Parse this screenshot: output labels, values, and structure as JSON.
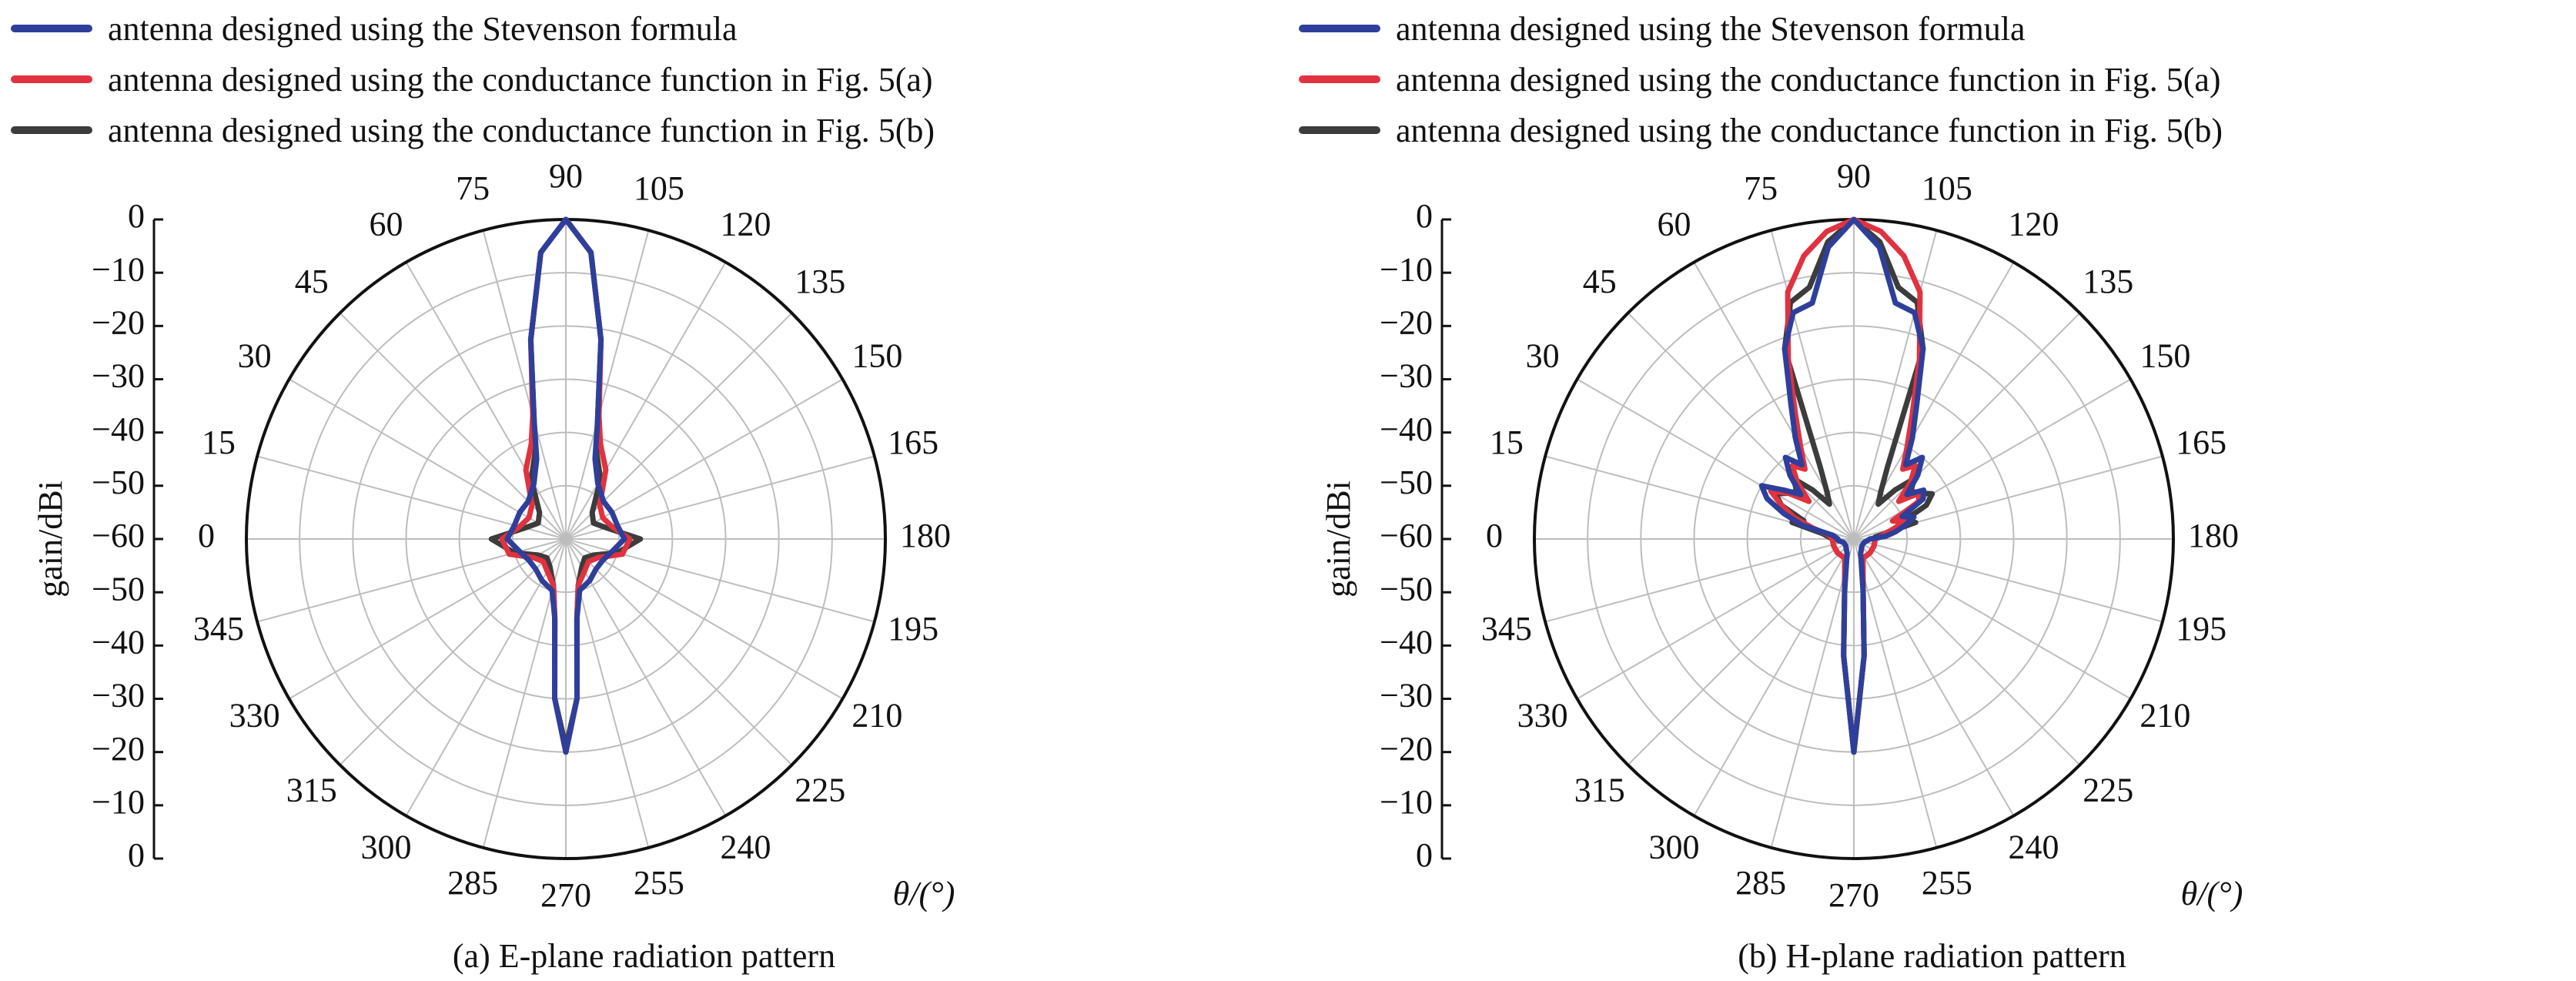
{
  "chart_data": [
    {
      "type": "polar-line",
      "panel": "a",
      "caption": "(a) E-plane radiation pattern",
      "ylabel": "gain/dBi",
      "angle_unit_label": "θ/(°)",
      "radial_range": [
        -60,
        0
      ],
      "radial_ticks": [
        0,
        -10,
        -20,
        -30,
        -40,
        -50,
        -60,
        -50,
        -40,
        -30,
        -20,
        -10,
        0
      ],
      "angle_ticks": [
        0,
        15,
        30,
        45,
        60,
        75,
        90,
        105,
        120,
        135,
        150,
        165,
        180,
        195,
        210,
        225,
        240,
        255,
        270,
        285,
        300,
        315,
        330,
        345
      ],
      "grid": true,
      "legend_position": "top-left",
      "series": [
        {
          "name": "antenna designed using the Stevenson formula",
          "color": "#2e3f9b",
          "points": [
            [
              0,
              -49
            ],
            [
              15,
              -50
            ],
            [
              30,
              -50
            ],
            [
              45,
              -50
            ],
            [
              60,
              -48
            ],
            [
              70,
              -44
            ],
            [
              75,
              -37
            ],
            [
              80,
              -22
            ],
            [
              85,
              -6
            ],
            [
              90,
              0
            ],
            [
              95,
              -6
            ],
            [
              100,
              -22
            ],
            [
              105,
              -37
            ],
            [
              110,
              -44
            ],
            [
              120,
              -48
            ],
            [
              135,
              -50
            ],
            [
              150,
              -50
            ],
            [
              165,
              -50
            ],
            [
              180,
              -49
            ],
            [
              195,
              -51
            ],
            [
              210,
              -52
            ],
            [
              225,
              -52
            ],
            [
              240,
              -51
            ],
            [
              255,
              -50
            ],
            [
              262,
              -45
            ],
            [
              266,
              -30
            ],
            [
              270,
              -20
            ],
            [
              274,
              -30
            ],
            [
              278,
              -45
            ],
            [
              285,
              -50
            ],
            [
              300,
              -51
            ],
            [
              315,
              -52
            ],
            [
              330,
              -52
            ],
            [
              345,
              -51
            ]
          ]
        },
        {
          "name": "antenna designed using the conductance function in Fig. 5(a)",
          "color": "#e1323f",
          "points": [
            [
              0,
              -48
            ],
            [
              15,
              -51
            ],
            [
              30,
              -52
            ],
            [
              45,
              -51
            ],
            [
              60,
              -45
            ],
            [
              70,
              -41
            ],
            [
              75,
              -36
            ],
            [
              80,
              -22
            ],
            [
              85,
              -6
            ],
            [
              90,
              0
            ],
            [
              95,
              -6
            ],
            [
              100,
              -22
            ],
            [
              105,
              -36
            ],
            [
              110,
              -41
            ],
            [
              120,
              -45
            ],
            [
              135,
              -51
            ],
            [
              150,
              -52
            ],
            [
              165,
              -51
            ],
            [
              180,
              -48
            ],
            [
              195,
              -49
            ],
            [
              210,
              -53
            ],
            [
              225,
              -54
            ],
            [
              240,
              -53
            ],
            [
              255,
              -51
            ],
            [
              262,
              -45
            ],
            [
              266,
              -30
            ],
            [
              270,
              -20
            ],
            [
              274,
              -30
            ],
            [
              278,
              -45
            ],
            [
              285,
              -51
            ],
            [
              300,
              -53
            ],
            [
              315,
              -54
            ],
            [
              330,
              -53
            ],
            [
              345,
              -49
            ]
          ]
        },
        {
          "name": "antenna designed using the conductance function in Fig. 5(b)",
          "color": "#3c3c3c",
          "points": [
            [
              0,
              -46
            ],
            [
              15,
              -52
            ],
            [
              30,
              -54
            ],
            [
              45,
              -53
            ],
            [
              60,
              -47
            ],
            [
              70,
              -43
            ],
            [
              75,
              -37
            ],
            [
              80,
              -22
            ],
            [
              85,
              -6
            ],
            [
              90,
              0
            ],
            [
              95,
              -6
            ],
            [
              100,
              -22
            ],
            [
              105,
              -37
            ],
            [
              110,
              -43
            ],
            [
              120,
              -47
            ],
            [
              135,
              -53
            ],
            [
              150,
              -54
            ],
            [
              165,
              -52
            ],
            [
              180,
              -46
            ],
            [
              195,
              -50
            ],
            [
              210,
              -54
            ],
            [
              225,
              -55
            ],
            [
              240,
              -54
            ],
            [
              255,
              -51
            ],
            [
              262,
              -45
            ],
            [
              266,
              -30
            ],
            [
              270,
              -21
            ],
            [
              274,
              -30
            ],
            [
              278,
              -45
            ],
            [
              285,
              -51
            ],
            [
              300,
              -54
            ],
            [
              315,
              -55
            ],
            [
              330,
              -54
            ],
            [
              345,
              -50
            ]
          ]
        }
      ]
    },
    {
      "type": "polar-line",
      "panel": "b",
      "caption": "(b) H-plane radiation pattern",
      "ylabel": "gain/dBi",
      "angle_unit_label": "θ/(°)",
      "radial_range": [
        -60,
        0
      ],
      "radial_ticks": [
        0,
        -10,
        -20,
        -30,
        -40,
        -50,
        -60,
        -50,
        -40,
        -30,
        -20,
        -10,
        0
      ],
      "angle_ticks": [
        0,
        15,
        30,
        45,
        60,
        75,
        90,
        105,
        120,
        135,
        150,
        165,
        180,
        195,
        210,
        225,
        240,
        255,
        270,
        285,
        300,
        315,
        330,
        345
      ],
      "grid": true,
      "legend_position": "top-left",
      "series": [
        {
          "name": "antenna designed using the Stevenson formula",
          "color": "#2e3f9b",
          "points": [
            [
              0,
              -57
            ],
            [
              10,
              -56
            ],
            [
              15,
              -50
            ],
            [
              20,
              -46
            ],
            [
              25,
              -42
            ],
            [
              30,
              -40
            ],
            [
              35,
              -44
            ],
            [
              40,
              -47
            ],
            [
              45,
              -43
            ],
            [
              50,
              -40
            ],
            [
              55,
              -43
            ],
            [
              60,
              -38
            ],
            [
              65,
              -32
            ],
            [
              70,
              -22
            ],
            [
              75,
              -16
            ],
            [
              80,
              -15
            ],
            [
              85,
              -5
            ],
            [
              90,
              0
            ],
            [
              95,
              -5
            ],
            [
              100,
              -15
            ],
            [
              105,
              -16
            ],
            [
              110,
              -22
            ],
            [
              115,
              -32
            ],
            [
              120,
              -38
            ],
            [
              125,
              -43
            ],
            [
              130,
              -40
            ],
            [
              135,
              -43
            ],
            [
              140,
              -47
            ],
            [
              145,
              -44
            ],
            [
              150,
              -45
            ],
            [
              155,
              -50
            ],
            [
              160,
              -48
            ],
            [
              165,
              -50
            ],
            [
              170,
              -52
            ],
            [
              175,
              -54
            ],
            [
              180,
              -57
            ],
            [
              200,
              -58
            ],
            [
              220,
              -58
            ],
            [
              245,
              -57
            ],
            [
              260,
              -50
            ],
            [
              265,
              -38
            ],
            [
              270,
              -20
            ],
            [
              275,
              -38
            ],
            [
              280,
              -50
            ],
            [
              295,
              -57
            ],
            [
              320,
              -58
            ],
            [
              340,
              -58
            ],
            [
              355,
              -57
            ]
          ]
        },
        {
          "name": "antenna designed using the conductance function in Fig. 5(a)",
          "color": "#e1323f",
          "points": [
            [
              0,
              -56
            ],
            [
              10,
              -55
            ],
            [
              15,
              -52
            ],
            [
              20,
              -48
            ],
            [
              25,
              -45
            ],
            [
              30,
              -42
            ],
            [
              35,
              -45
            ],
            [
              40,
              -49
            ],
            [
              45,
              -45
            ],
            [
              50,
              -42
            ],
            [
              55,
              -44
            ],
            [
              60,
              -40
            ],
            [
              65,
              -34
            ],
            [
              70,
              -24
            ],
            [
              75,
              -12
            ],
            [
              80,
              -6
            ],
            [
              85,
              -2
            ],
            [
              90,
              0
            ],
            [
              95,
              -2
            ],
            [
              100,
              -6
            ],
            [
              105,
              -12
            ],
            [
              110,
              -24
            ],
            [
              115,
              -34
            ],
            [
              120,
              -40
            ],
            [
              125,
              -44
            ],
            [
              130,
              -42
            ],
            [
              135,
              -45
            ],
            [
              140,
              -49
            ],
            [
              145,
              -45
            ],
            [
              150,
              -46
            ],
            [
              155,
              -52
            ],
            [
              160,
              -50
            ],
            [
              165,
              -52
            ],
            [
              170,
              -54
            ],
            [
              175,
              -55
            ],
            [
              180,
              -56
            ],
            [
              200,
              -56
            ],
            [
              220,
              -56
            ],
            [
              245,
              -56
            ],
            [
              260,
              -50
            ],
            [
              265,
              -38
            ],
            [
              270,
              -20
            ],
            [
              275,
              -38
            ],
            [
              280,
              -50
            ],
            [
              295,
              -56
            ],
            [
              320,
              -56
            ],
            [
              340,
              -56
            ],
            [
              355,
              -56
            ]
          ]
        },
        {
          "name": "antenna designed using the conductance function in Fig. 5(b)",
          "color": "#3c3c3c",
          "points": [
            [
              0,
              -56
            ],
            [
              10,
              -54
            ],
            [
              15,
              -48
            ],
            [
              20,
              -50
            ],
            [
              25,
              -45
            ],
            [
              30,
              -43
            ],
            [
              35,
              -45
            ],
            [
              40,
              -46
            ],
            [
              45,
              -44
            ],
            [
              50,
              -48
            ],
            [
              55,
              -52
            ],
            [
              60,
              -50
            ],
            [
              65,
              -45
            ],
            [
              70,
              -22
            ],
            [
              75,
              -14
            ],
            [
              80,
              -12
            ],
            [
              85,
              -4
            ],
            [
              90,
              0
            ],
            [
              95,
              -4
            ],
            [
              100,
              -12
            ],
            [
              105,
              -14
            ],
            [
              110,
              -22
            ],
            [
              115,
              -45
            ],
            [
              120,
              -50
            ],
            [
              125,
              -52
            ],
            [
              130,
              -48
            ],
            [
              135,
              -44
            ],
            [
              140,
              -46
            ],
            [
              145,
              -45
            ],
            [
              150,
              -43
            ],
            [
              155,
              -45
            ],
            [
              160,
              -50
            ],
            [
              165,
              -48
            ],
            [
              170,
              -54
            ],
            [
              175,
              -56
            ],
            [
              180,
              -56
            ],
            [
              200,
              -56
            ],
            [
              220,
              -56
            ],
            [
              245,
              -56
            ],
            [
              260,
              -50
            ],
            [
              265,
              -38
            ],
            [
              270,
              -20
            ],
            [
              275,
              -38
            ],
            [
              280,
              -50
            ],
            [
              295,
              -56
            ],
            [
              320,
              -56
            ],
            [
              340,
              -56
            ],
            [
              355,
              -56
            ]
          ]
        }
      ]
    }
  ]
}
